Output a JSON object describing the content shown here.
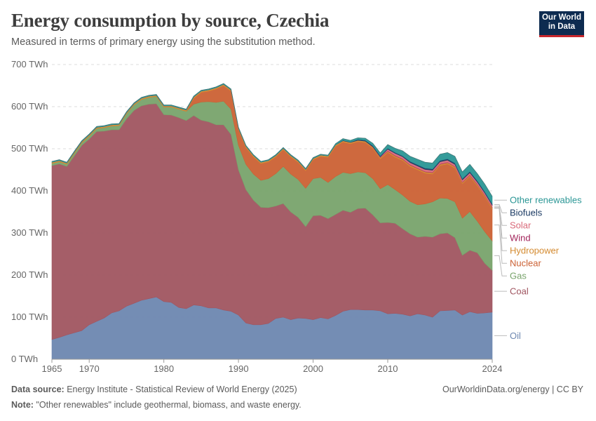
{
  "header": {
    "title": "Energy consumption by source, Czechia",
    "subtitle": "Measured in terms of primary energy using the substitution method.",
    "logo_line1": "Our World",
    "logo_line2": "in Data"
  },
  "footer": {
    "source_label": "Data source:",
    "source_text": "Energy Institute - Statistical Review of World Energy (2025)",
    "url_text": "OurWorldinData.org/energy | CC BY",
    "note_label": "Note:",
    "note_text": "\"Other renewables\" include geothermal, biomass, and waste energy."
  },
  "chart_data": {
    "type": "area",
    "stacked": true,
    "title": "Energy consumption by source, Czechia",
    "unit": "TWh",
    "ylim": [
      0,
      700
    ],
    "y_ticks": [
      0,
      100,
      200,
      300,
      400,
      500,
      600,
      700
    ],
    "y_tick_labels": [
      "0 TWh",
      "100 TWh",
      "200 TWh",
      "300 TWh",
      "400 TWh",
      "500 TWh",
      "600 TWh",
      "700 TWh"
    ],
    "x_ticks": [
      1965,
      1970,
      1980,
      1990,
      2000,
      2010,
      2024
    ],
    "x_tick_labels": [
      "1965",
      "1970",
      "1980",
      "1990",
      "2000",
      "2010",
      "2024"
    ],
    "x_range": [
      1965,
      2024
    ],
    "grid": "horizontal dashed",
    "legend_placement": "right, aligned with series",
    "x": [
      1965,
      1966,
      1967,
      1968,
      1969,
      1970,
      1971,
      1972,
      1973,
      1974,
      1975,
      1976,
      1977,
      1978,
      1979,
      1980,
      1981,
      1982,
      1983,
      1984,
      1985,
      1986,
      1987,
      1988,
      1989,
      1990,
      1991,
      1992,
      1993,
      1994,
      1995,
      1996,
      1997,
      1998,
      1999,
      2000,
      2001,
      2002,
      2003,
      2004,
      2005,
      2006,
      2007,
      2008,
      2009,
      2010,
      2011,
      2012,
      2013,
      2014,
      2015,
      2016,
      2017,
      2018,
      2019,
      2020,
      2021,
      2022,
      2023,
      2024
    ],
    "series": [
      {
        "name": "Oil",
        "color": "#6d87b0",
        "values": [
          47,
          52,
          58,
          63,
          68,
          82,
          90,
          98,
          110,
          115,
          126,
          133,
          140,
          144,
          148,
          137,
          135,
          123,
          120,
          129,
          127,
          122,
          122,
          117,
          114,
          105,
          86,
          82,
          82,
          85,
          97,
          100,
          94,
          98,
          97,
          94,
          99,
          96,
          104,
          114,
          118,
          118,
          117,
          117,
          115,
          108,
          109,
          107,
          103,
          108,
          105,
          100,
          115,
          116,
          117,
          105,
          113,
          109,
          110,
          112
        ]
      },
      {
        "name": "Coal",
        "color": "#a05560",
        "values": [
          413,
          412,
          400,
          420,
          440,
          441,
          451,
          444,
          435,
          430,
          445,
          458,
          462,
          462,
          459,
          444,
          445,
          451,
          447,
          450,
          441,
          442,
          435,
          440,
          420,
          345,
          317,
          296,
          279,
          275,
          267,
          270,
          256,
          239,
          218,
          247,
          243,
          238,
          240,
          240,
          231,
          240,
          242,
          226,
          209,
          217,
          214,
          203,
          195,
          182,
          187,
          190,
          183,
          184,
          172,
          142,
          146,
          144,
          118,
          99
        ]
      },
      {
        "name": "Gas",
        "color": "#78a36b",
        "values": [
          5,
          5,
          5,
          6,
          6,
          7,
          7,
          8,
          9,
          10,
          12,
          13,
          15,
          16,
          17,
          18,
          19,
          20,
          22,
          27,
          43,
          48,
          53,
          56,
          60,
          58,
          60,
          62,
          64,
          69,
          77,
          88,
          90,
          90,
          91,
          88,
          90,
          86,
          90,
          90,
          92,
          87,
          84,
          86,
          81,
          90,
          80,
          80,
          77,
          77,
          77,
          84,
          85,
          82,
          85,
          88,
          92,
          75,
          75,
          70
        ]
      },
      {
        "name": "Nuclear",
        "color": "#cb6134",
        "values": [
          0,
          0,
          0,
          0,
          0,
          0,
          0,
          0,
          0,
          0,
          0,
          0,
          0,
          0,
          0,
          0,
          0,
          0,
          0,
          14,
          23,
          25,
          32,
          37,
          43,
          38,
          40,
          41,
          40,
          40,
          40,
          40,
          41,
          41,
          42,
          45,
          50,
          60,
          72,
          72,
          71,
          72,
          72,
          72,
          71,
          76,
          77,
          82,
          83,
          83,
          73,
          66,
          77,
          82,
          80,
          82,
          83,
          84,
          83,
          76
        ]
      },
      {
        "name": "Hydropower",
        "color": "#d48b31",
        "values": [
          3,
          3,
          3,
          3,
          3,
          3,
          3,
          3,
          3,
          3,
          3,
          3,
          3,
          3,
          3,
          3,
          3,
          3,
          3,
          3,
          3,
          3,
          3,
          3,
          3,
          3,
          3,
          3,
          3,
          3,
          3,
          3,
          3,
          3,
          3,
          3,
          3,
          3,
          3,
          3,
          3,
          3,
          3,
          3,
          3,
          3,
          3,
          3,
          3,
          3,
          3,
          3,
          3,
          3,
          3,
          3,
          3,
          3,
          3,
          3
        ]
      },
      {
        "name": "Wind",
        "color": "#a2245b",
        "values": [
          0,
          0,
          0,
          0,
          0,
          0,
          0,
          0,
          0,
          0,
          0,
          0,
          0,
          0,
          0,
          0,
          0,
          0,
          0,
          0,
          0,
          0,
          0,
          0,
          0,
          0,
          0,
          0,
          0,
          0,
          0,
          0,
          0,
          0,
          0,
          0,
          0,
          0,
          0,
          0,
          0,
          0,
          0,
          1,
          1,
          1,
          1,
          1,
          1,
          1,
          1,
          1,
          1,
          1,
          1,
          1,
          1,
          1,
          1,
          1
        ]
      },
      {
        "name": "Solar",
        "color": "#d96a7a",
        "values": [
          0,
          0,
          0,
          0,
          0,
          0,
          0,
          0,
          0,
          0,
          0,
          0,
          0,
          0,
          0,
          0,
          0,
          0,
          0,
          0,
          0,
          0,
          0,
          0,
          0,
          0,
          0,
          0,
          0,
          0,
          0,
          0,
          0,
          0,
          0,
          0,
          0,
          0,
          0,
          0,
          0,
          0,
          0,
          0,
          1,
          4,
          5,
          5,
          5,
          5,
          5,
          5,
          5,
          5,
          5,
          5,
          5,
          5,
          5,
          5
        ]
      },
      {
        "name": "Biofuels",
        "color": "#1b3a63",
        "values": [
          0,
          0,
          0,
          0,
          0,
          0,
          0,
          0,
          0,
          0,
          0,
          0,
          0,
          0,
          0,
          0,
          0,
          0,
          0,
          0,
          0,
          0,
          0,
          0,
          0,
          0,
          0,
          0,
          0,
          0,
          0,
          0,
          0,
          0,
          0,
          0,
          0,
          0,
          0,
          1,
          1,
          2,
          2,
          2,
          2,
          2,
          2,
          2,
          3,
          3,
          3,
          3,
          3,
          3,
          3,
          3,
          3,
          3,
          3,
          3
        ]
      },
      {
        "name": "Other renewables",
        "color": "#2a9695",
        "values": [
          2,
          2,
          2,
          2,
          2,
          2,
          2,
          2,
          2,
          2,
          2,
          2,
          2,
          2,
          2,
          2,
          2,
          2,
          2,
          2,
          2,
          2,
          2,
          2,
          2,
          2,
          2,
          2,
          2,
          2,
          2,
          2,
          2,
          2,
          2,
          2,
          2,
          2,
          3,
          4,
          4,
          4,
          5,
          6,
          7,
          9,
          10,
          12,
          12,
          13,
          14,
          14,
          15,
          15,
          16,
          16,
          17,
          17,
          18,
          18
        ]
      }
    ]
  }
}
